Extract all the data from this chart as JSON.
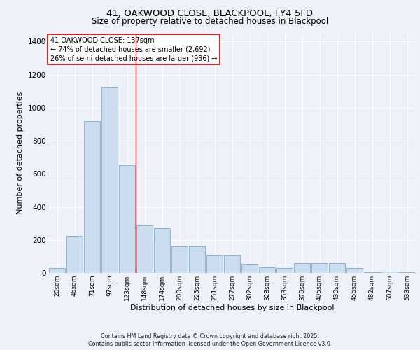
{
  "title1": "41, OAKWOOD CLOSE, BLACKPOOL, FY4 5FD",
  "title2": "Size of property relative to detached houses in Blackpool",
  "xlabel": "Distribution of detached houses by size in Blackpool",
  "ylabel": "Number of detached properties",
  "categories": [
    "20sqm",
    "46sqm",
    "71sqm",
    "97sqm",
    "123sqm",
    "148sqm",
    "174sqm",
    "200sqm",
    "225sqm",
    "251sqm",
    "277sqm",
    "302sqm",
    "328sqm",
    "353sqm",
    "379sqm",
    "405sqm",
    "430sqm",
    "456sqm",
    "482sqm",
    "507sqm",
    "533sqm"
  ],
  "values": [
    30,
    225,
    920,
    1120,
    650,
    290,
    270,
    160,
    160,
    105,
    105,
    55,
    35,
    30,
    60,
    60,
    60,
    30,
    5,
    10,
    5
  ],
  "bar_color": "#ccddf0",
  "bar_edge_color": "#7aabcc",
  "vline_x_index": 4.5,
  "vline_color": "#cc0000",
  "annotation_text": "41 OAKWOOD CLOSE: 137sqm\n← 74% of detached houses are smaller (2,692)\n26% of semi-detached houses are larger (936) →",
  "annotation_box_color": "#ffffff",
  "annotation_box_edge": "#cc0000",
  "footer1": "Contains HM Land Registry data © Crown copyright and database right 2025.",
  "footer2": "Contains public sector information licensed under the Open Government Licence v3.0.",
  "bg_color": "#eef2f8",
  "plot_bg_color": "#eef2f8",
  "ylim": [
    0,
    1450
  ],
  "yticks": [
    0,
    200,
    400,
    600,
    800,
    1000,
    1200,
    1400
  ]
}
